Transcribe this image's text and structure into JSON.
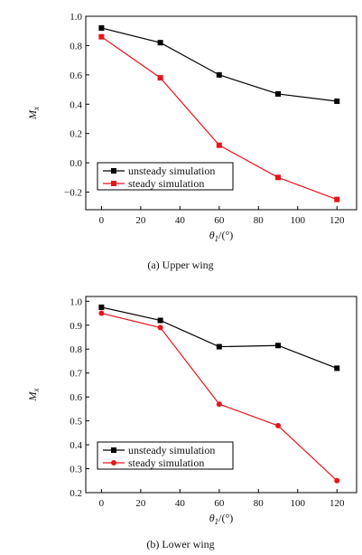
{
  "chart_data": [
    {
      "type": "line",
      "caption": "(a)  Upper wing",
      "xlabel": "θ1/(°)",
      "ylabel": "Mx",
      "xlim": [
        -8,
        130
      ],
      "ylim": [
        -0.32,
        1.0
      ],
      "x_ticks": [
        0,
        20,
        40,
        60,
        80,
        100,
        120
      ],
      "y_ticks": [
        -0.2,
        0.0,
        0.2,
        0.4,
        0.6,
        0.8,
        1.0
      ],
      "y_tick_labels": [
        "−0.2",
        "0.0",
        "0.2",
        "0.4",
        "0.6",
        "0.8",
        "1.0"
      ],
      "legend_position": "lower-left",
      "x": [
        0,
        30,
        60,
        90,
        120
      ],
      "series": [
        {
          "name": "unsteady simulation",
          "color": "#000000",
          "marker": "square",
          "values": [
            0.92,
            0.82,
            0.6,
            0.47,
            0.42
          ]
        },
        {
          "name": "steady simulation",
          "color": "#e8141c",
          "marker": "square",
          "values": [
            0.86,
            0.58,
            0.12,
            -0.1,
            -0.25
          ]
        }
      ]
    },
    {
      "type": "line",
      "caption": "(b)  Lower wing",
      "xlabel": "θ1/(°)",
      "ylabel": "Mx",
      "xlim": [
        -8,
        130
      ],
      "ylim": [
        0.2,
        1.02
      ],
      "x_ticks": [
        0,
        20,
        40,
        60,
        80,
        100,
        120
      ],
      "y_ticks": [
        0.2,
        0.3,
        0.4,
        0.5,
        0.6,
        0.7,
        0.8,
        0.9,
        1.0
      ],
      "y_tick_labels": [
        "0.2",
        "0.3",
        "0.4",
        "0.5",
        "0.6",
        "0.7",
        "0.8",
        "0.9",
        "1.0"
      ],
      "legend_position": "lower-left",
      "x": [
        0,
        30,
        60,
        90,
        120
      ],
      "series": [
        {
          "name": "unsteady simulation",
          "color": "#000000",
          "marker": "square",
          "values": [
            0.975,
            0.92,
            0.81,
            0.815,
            0.72
          ]
        },
        {
          "name": "steady simulation",
          "color": "#e8141c",
          "marker": "circle",
          "values": [
            0.95,
            0.89,
            0.57,
            0.48,
            0.25
          ]
        }
      ]
    }
  ]
}
